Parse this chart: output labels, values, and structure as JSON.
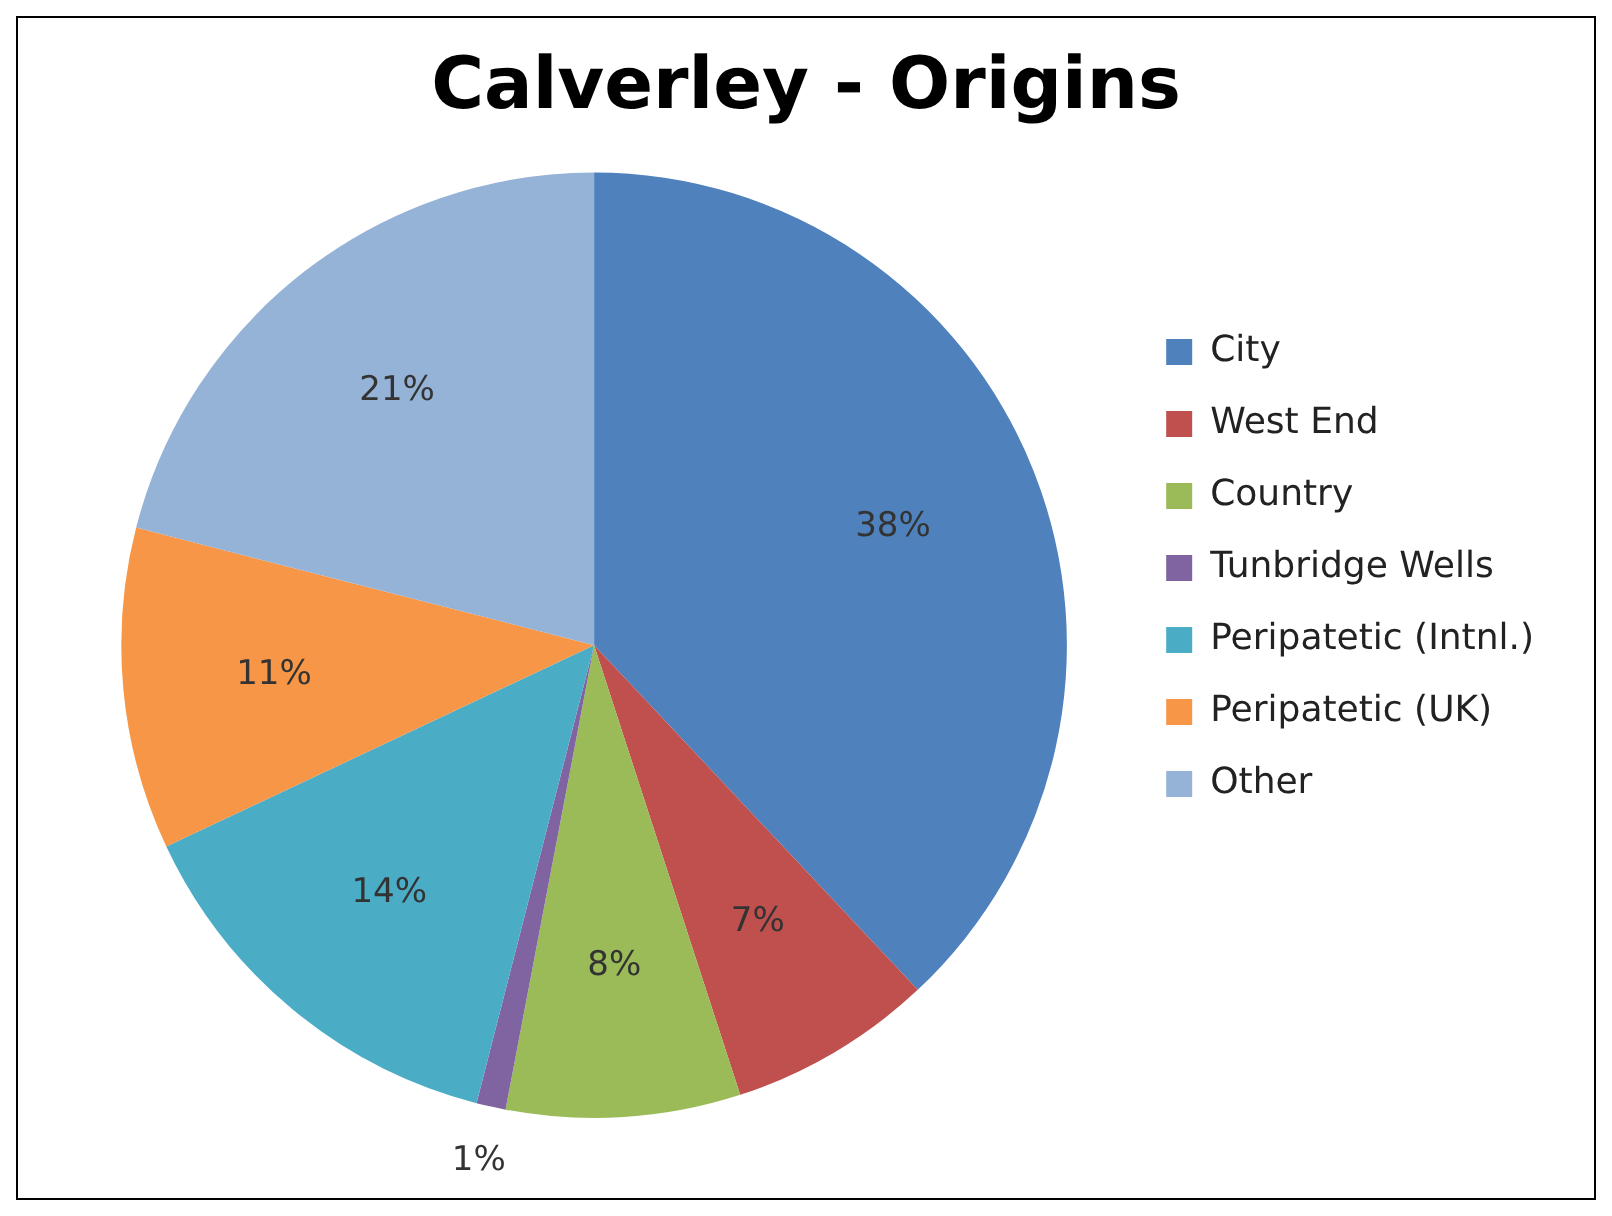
{
  "chart_data": {
    "type": "pie",
    "title": "Calverley - Origins",
    "categories": [
      "City",
      "West End",
      "Country",
      "Tunbridge Wells",
      "Peripatetic (Intnl.)",
      "Peripatetic (UK)",
      "Other"
    ],
    "values": [
      38,
      7,
      8,
      1,
      14,
      11,
      21
    ],
    "colors": [
      "#4f81bd",
      "#c0504d",
      "#9bbb59",
      "#8064a2",
      "#4bacc6",
      "#f79646",
      "#95b3d7"
    ],
    "value_labels": [
      "38%",
      "7%",
      "8%",
      "1%",
      "14%",
      "11%",
      "21%"
    ],
    "legend": "right"
  }
}
